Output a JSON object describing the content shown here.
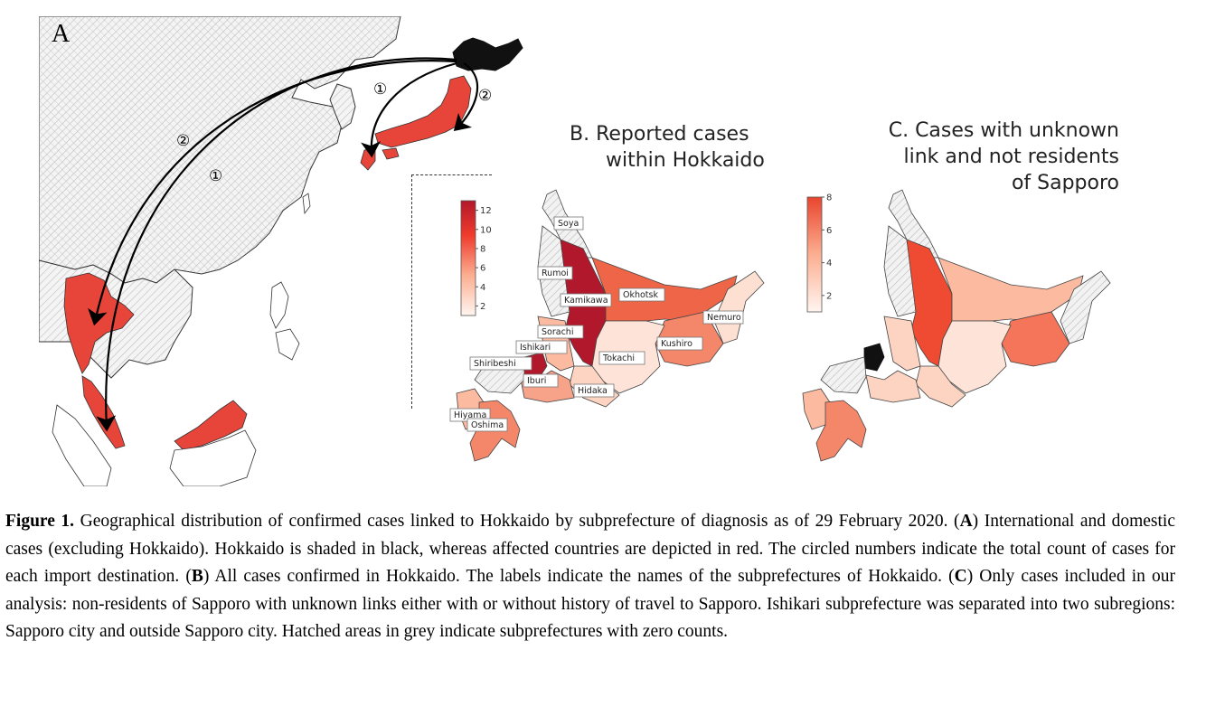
{
  "panel_a": {
    "letter": "A",
    "circled_numbers": [
      "①",
      "②",
      "①",
      "②"
    ]
  },
  "panel_b": {
    "title_line1": "B. Reported cases",
    "title_line2": "within Hokkaido",
    "colorbar": {
      "ticks": [
        "12",
        "10",
        "8",
        "6",
        "4",
        "2"
      ],
      "max": 13,
      "min": 1,
      "low_color": "#fff5f0",
      "high_color": "#b2182b"
    },
    "labels": [
      "Soya",
      "Rumoi",
      "Kamikawa",
      "Okhotsk",
      "Nemuro",
      "Sorachi",
      "Ishikari",
      "Kushiro",
      "Shiribeshi",
      "Tokachi",
      "Iburi",
      "Hidaka",
      "Hiyama",
      "Oshima"
    ]
  },
  "panel_c": {
    "title_line1": "C. Cases with unknown",
    "title_line2": "link and not residents",
    "title_line3": "of Sapporo",
    "colorbar": {
      "ticks": [
        "8",
        "6",
        "4",
        "2"
      ],
      "max": 8,
      "min": 1,
      "low_color": "#fff5f0",
      "high_color": "#e8452e"
    }
  },
  "colors": {
    "hokkaido_black": "#111111",
    "affected_red": "#e8453a",
    "hatch_grey": "#bfbfbf",
    "boundary": "#333333"
  },
  "caption": {
    "figure_label": "Figure 1.",
    "seg1": " Geographical distribution of confirmed cases linked to Hokkaido by subprefecture of diagnosis as of 29 February 2020. (",
    "a": "A",
    "seg2": ") International and domestic cases (excluding Hokkaido). Hokkaido is shaded in black, whereas affected countries are depicted in red. The circled numbers indicate the total count of cases for each import destination. (",
    "b": "B",
    "seg3": ") All cases confirmed in Hokkaido. The labels indicate the names of the subprefectures of Hokkaido. (",
    "c": "C",
    "seg4": ") Only cases included in our analysis: non-residents of Sapporo with unknown links either with or without history of travel to Sapporo. Ishikari subprefecture was separated into two subregions: Sapporo city and outside Sapporo city. Hatched areas in grey indicate subprefectures with zero counts."
  }
}
